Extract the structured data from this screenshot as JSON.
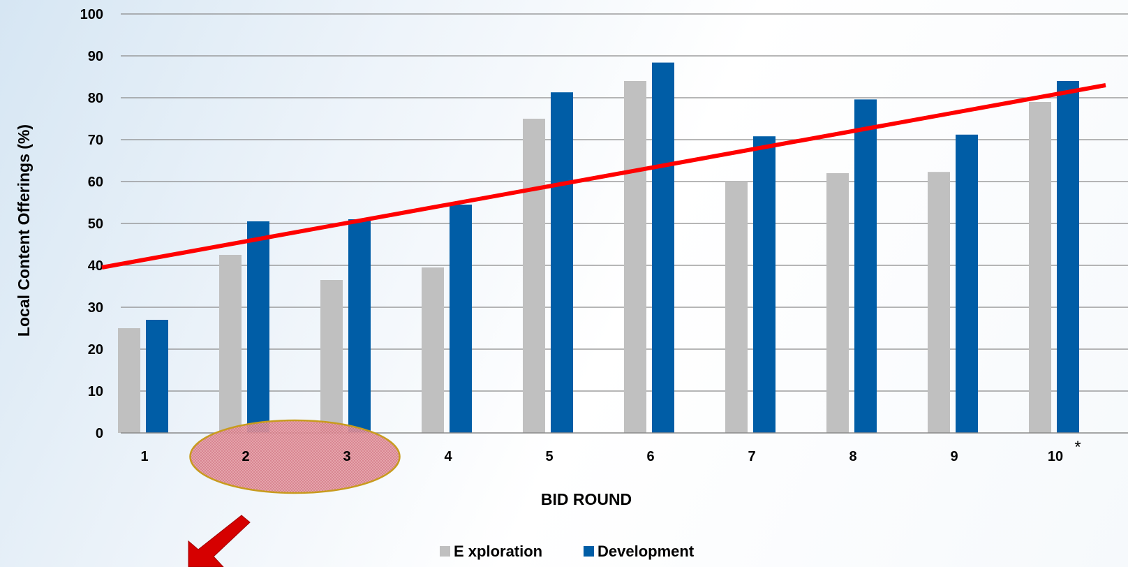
{
  "chart_data": {
    "type": "bar",
    "categories": [
      "1",
      "2",
      "3",
      "4",
      "5",
      "6",
      "7",
      "8",
      "9",
      "10"
    ],
    "category_note": {
      "index": 9,
      "mark": "*"
    },
    "series": [
      {
        "name": "E xploration",
        "color": "#c0c0c0",
        "values": [
          25,
          42.5,
          36.5,
          39.5,
          75,
          84,
          60,
          62,
          62.3,
          79
        ]
      },
      {
        "name": "Development",
        "color": "#005da6",
        "values": [
          27,
          50.5,
          51,
          54.5,
          81.3,
          88.4,
          70.8,
          79.6,
          71.2,
          84
        ]
      }
    ],
    "trendline": {
      "color": "#ff0000",
      "start_value": 39.5,
      "end_value": 83
    },
    "highlight": {
      "categories": [
        "2",
        "3"
      ],
      "fill": "#e8a6ae",
      "stroke": "#c89b1e",
      "arrow_color": "#d60000"
    },
    "xlabel": "BID ROUND",
    "ylabel": "Local Content Offerings (%)",
    "ylim": [
      0,
      100
    ],
    "yticks": [
      0,
      10,
      20,
      30,
      40,
      50,
      60,
      70,
      80,
      90,
      100
    ],
    "grid": true,
    "legend_position": "bottom-center"
  }
}
